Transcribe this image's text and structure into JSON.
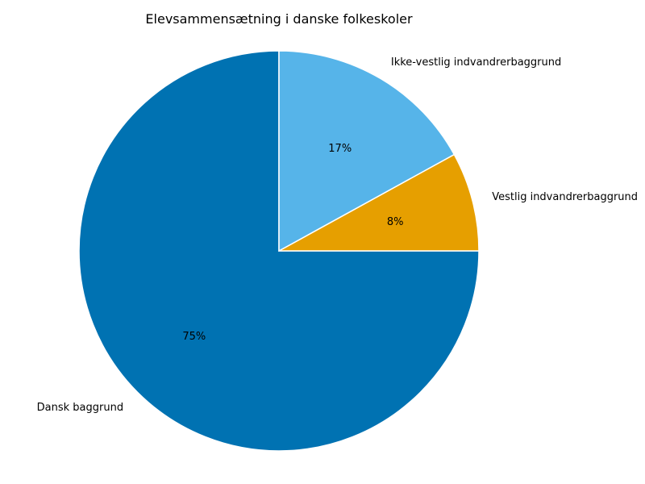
{
  "chart_data": {
    "type": "pie",
    "title": "Elevsammensætning i danske folkeskoler",
    "categories": [
      "Dansk baggrund",
      "Vestlig indvandrerbaggrund",
      "Ikke-vestlig indvandrerbaggrund"
    ],
    "values": [
      75,
      8,
      17
    ],
    "value_labels": [
      "75%",
      "8%",
      "17%"
    ],
    "colors": [
      "#0072B2",
      "#E69F00",
      "#56B4E9"
    ],
    "slice_edge_color": "#ffffff",
    "legend": "none"
  }
}
